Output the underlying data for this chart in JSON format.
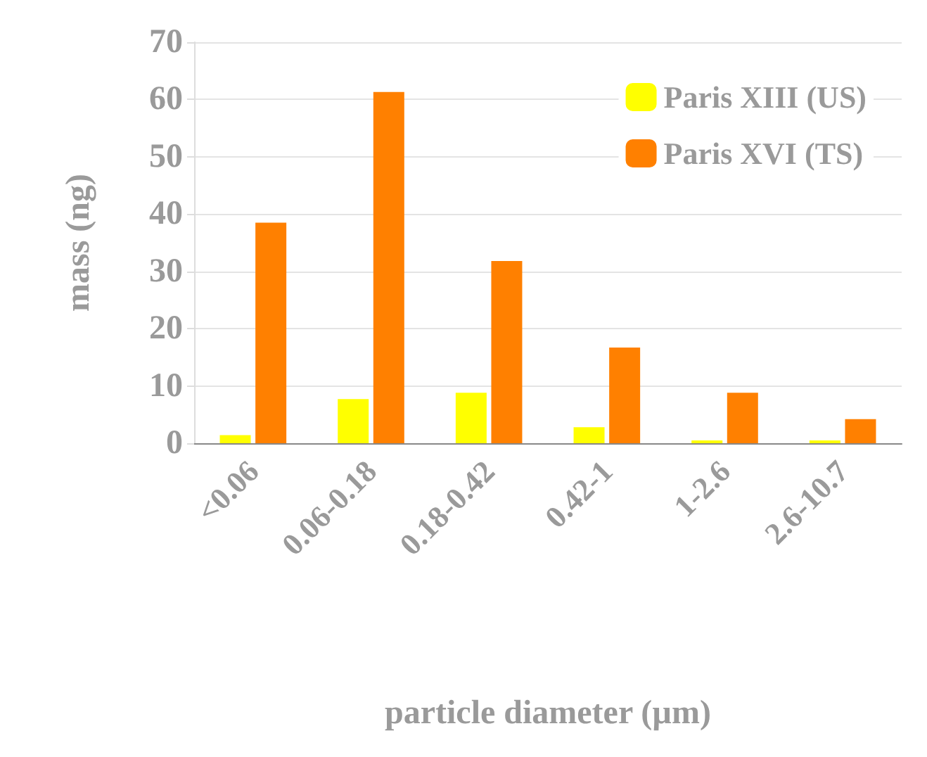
{
  "chart_data": {
    "type": "bar",
    "xlabel": "particle diameter (µm)",
    "ylabel": "mass (ng)",
    "categories": [
      "<0.06",
      "0.06-0.18",
      "0.18-0.42",
      "0.42-1",
      "1-2.6",
      "2.6-10.7"
    ],
    "series": [
      {
        "name": "Paris XIII (US)",
        "color": "#ffff00",
        "values": [
          1.4,
          7.7,
          8.8,
          2.8,
          0.5,
          0.5
        ]
      },
      {
        "name": "Paris XVI (TS)",
        "color": "#ff8000",
        "values": [
          38.5,
          61.3,
          31.8,
          16.7,
          8.8,
          4.2
        ]
      }
    ],
    "ylim": [
      0,
      70
    ],
    "yticks": [
      0,
      10,
      20,
      30,
      40,
      50,
      60,
      70
    ],
    "grid": "y",
    "legend": "top right"
  }
}
